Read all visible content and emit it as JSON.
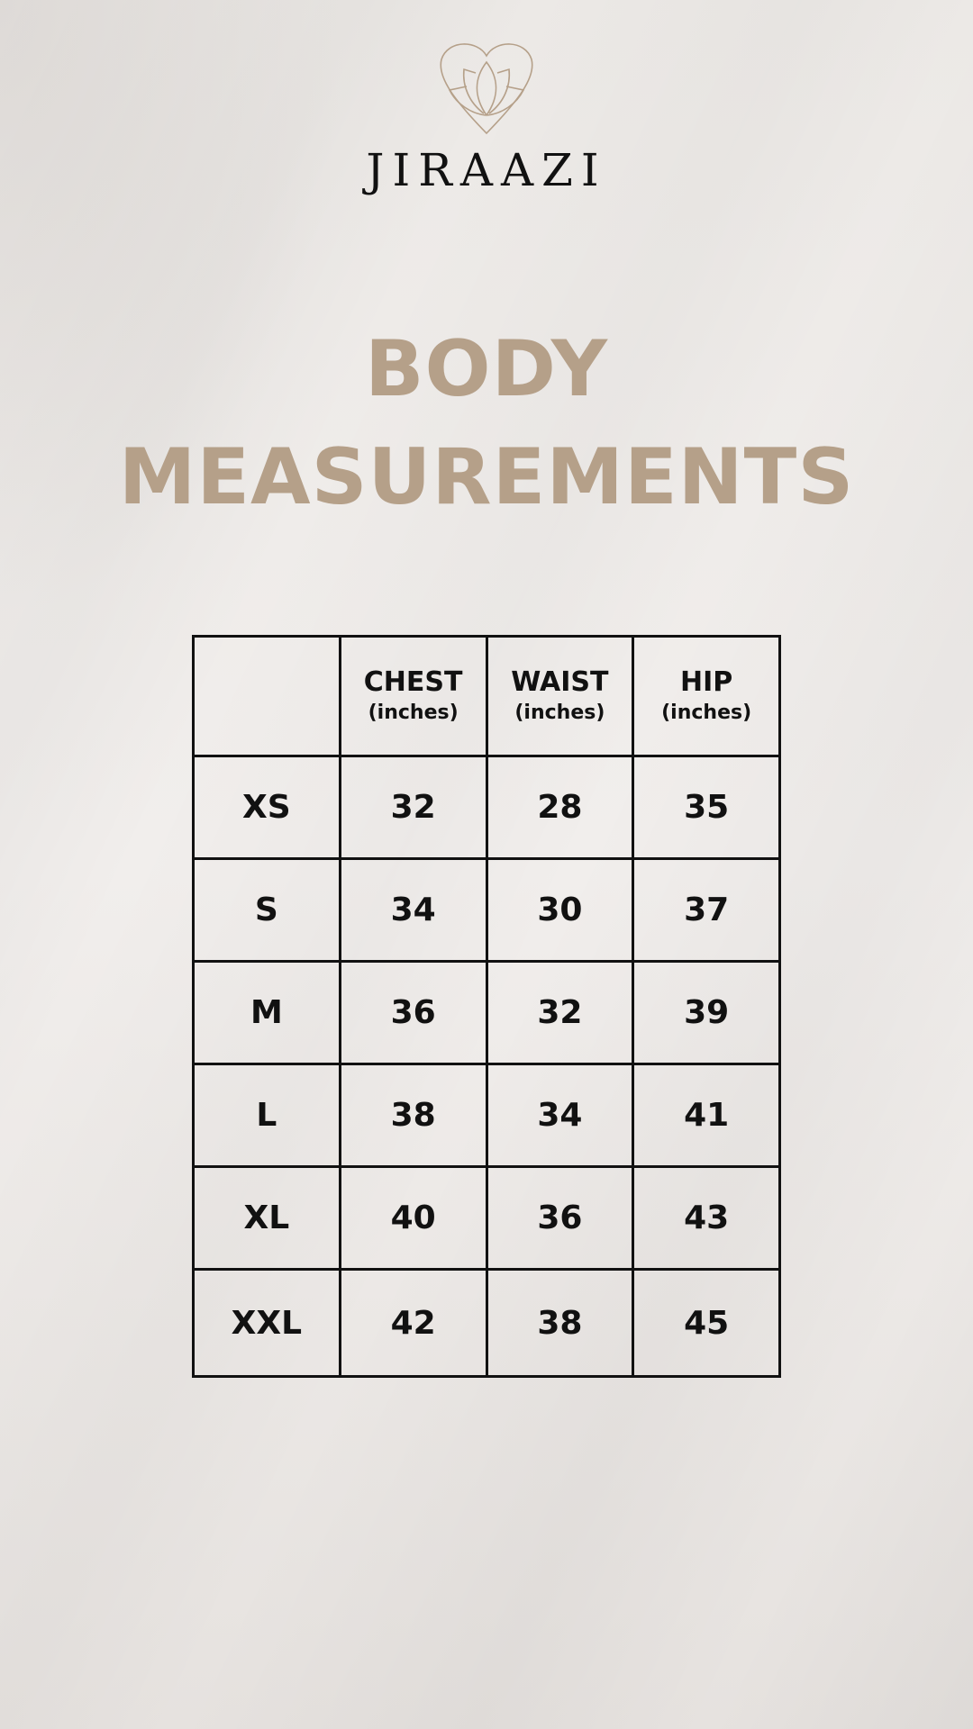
{
  "brand": {
    "name": "JIRAAZI",
    "logo_icon": "heart-lotus-icon",
    "logo_color": "#b5a089"
  },
  "title": {
    "line1": "BODY",
    "line2": "MEASUREMENTS",
    "color": "#b5a089"
  },
  "table": {
    "headers": [
      {
        "label": "",
        "unit": ""
      },
      {
        "label": "CHEST",
        "unit": "(inches)"
      },
      {
        "label": "WAIST",
        "unit": "(inches)"
      },
      {
        "label": "HIP",
        "unit": "(inches)"
      }
    ],
    "rows": [
      [
        "XS",
        "32",
        "28",
        "35"
      ],
      [
        "S",
        "34",
        "30",
        "37"
      ],
      [
        "M",
        "36",
        "32",
        "39"
      ],
      [
        "L",
        "38",
        "34",
        "41"
      ],
      [
        "XL",
        "40",
        "36",
        "43"
      ],
      [
        "XXL",
        "42",
        "38",
        "45"
      ]
    ]
  }
}
